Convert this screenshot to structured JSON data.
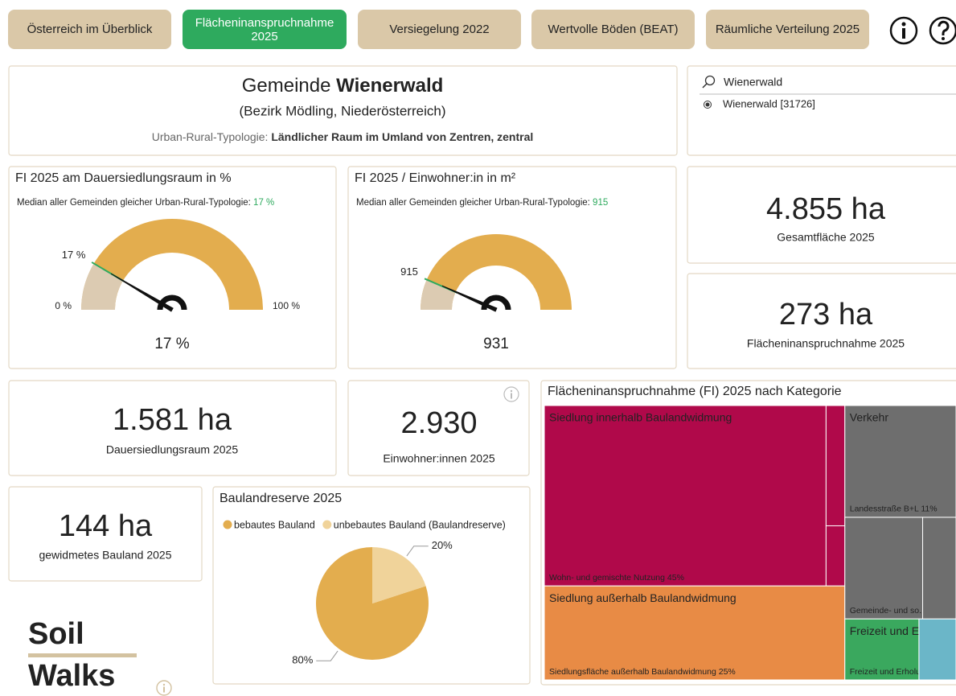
{
  "nav": [
    "Österreich im Überblick",
    "Flächeninanspruchnahme 2025",
    "Versiegelung 2022",
    "Wertvolle Böden (BEAT)",
    "Räumliche Verteilung 2025"
  ],
  "header": {
    "prefix": "Gemeinde",
    "name": "Wienerwald",
    "district": "(Bezirk Mödling, Niederösterreich)",
    "typology_label": "Urban-Rural-Typologie:",
    "typology": "Ländlicher Raum im Umland von Zentren, zentral"
  },
  "search": {
    "query": "Wienerwald",
    "option": "Wienerwald [31726]"
  },
  "kpis": [
    {
      "value": "4.855 ha",
      "label": "Gesamtfläche 2025"
    },
    {
      "value": "273 ha",
      "label": "Flächeninanspruchnahme 2025"
    },
    {
      "value": "1.581 ha",
      "label": "Dauersiedlungsraum 2025"
    },
    {
      "value": "2.930",
      "label": "Einwohner:innen 2025"
    },
    {
      "value": "144 ha",
      "label": "gewidmetes Bauland 2025"
    }
  ],
  "logo": [
    "Soil",
    "Walks"
  ],
  "chart_data": [
    {
      "type": "gauge",
      "title": "FI 2025 am Dauersiedlungsraum in %",
      "subtitle": "Median aller Gemeinden gleicher Urban-Rural-Typologie:",
      "value": 17,
      "value_label": "17 %",
      "median": 17,
      "median_label": "17 %",
      "ylim": [
        0,
        100
      ],
      "yticks": [
        {
          "value": 0,
          "label": "0 %"
        },
        {
          "value": 100,
          "label": "100 %"
        }
      ],
      "color": "#e3ad4e",
      "fill_color": "#dccbb2",
      "median_color": "#2eaa5e"
    },
    {
      "type": "gauge",
      "title": "FI 2025 / Einwohner:in in m²",
      "subtitle": "Median aller Gemeinden gleicher Urban-Rural-Typologie:",
      "value": 931,
      "median": 915,
      "ylim": [
        0,
        7000
      ],
      "color": "#e3ad4e",
      "fill_color": "#dccbb2",
      "median_color": "#2eaa5e"
    },
    {
      "type": "pie",
      "title": "Baulandreserve 2025",
      "categories": [
        "bebautes Bauland",
        "unbebautes Bauland (Baulandreserve)"
      ],
      "values": [
        80,
        20
      ],
      "value_labels": [
        "80%",
        "20%"
      ],
      "colors": [
        "#e3ad4e",
        "#f0d39a"
      ]
    },
    {
      "type": "treemap",
      "title": "Flächeninanspruchnahme (FI) 2025 nach Kategorie",
      "groups": [
        {
          "name": "Siedlung innerhalb Baulandwidmung",
          "color": "#b0094a",
          "children": [
            {
              "name": "Wohn- und gemischte Nutzung 45%",
              "value": 45
            },
            {
              "name": null,
              "value": 2
            },
            {
              "name": null,
              "value": 1
            }
          ]
        },
        {
          "name": "Siedlung außerhalb Baulandwidmung",
          "color": "#e88b45",
          "children": [
            {
              "name": "Siedlungsfläche außerhalb Baulandwidmung 25%",
              "value": 25
            }
          ]
        },
        {
          "name": "Verkehr",
          "color": "#6e6e6e",
          "children": [
            {
              "name": "Landesstraße B+L 11%",
              "value": 11
            },
            {
              "name": "Gemeinde- und so...",
              "value": 7
            },
            {
              "name": null,
              "value": 3
            }
          ]
        },
        {
          "name": "Freizeit und Er...",
          "color": "#3aa85e",
          "children": [
            {
              "name": "Freizeit und Erholu...",
              "value": 4
            }
          ]
        },
        {
          "name": null,
          "color": "#6bb6c8",
          "children": [
            {
              "name": null,
              "value": 2
            }
          ]
        }
      ]
    }
  ]
}
